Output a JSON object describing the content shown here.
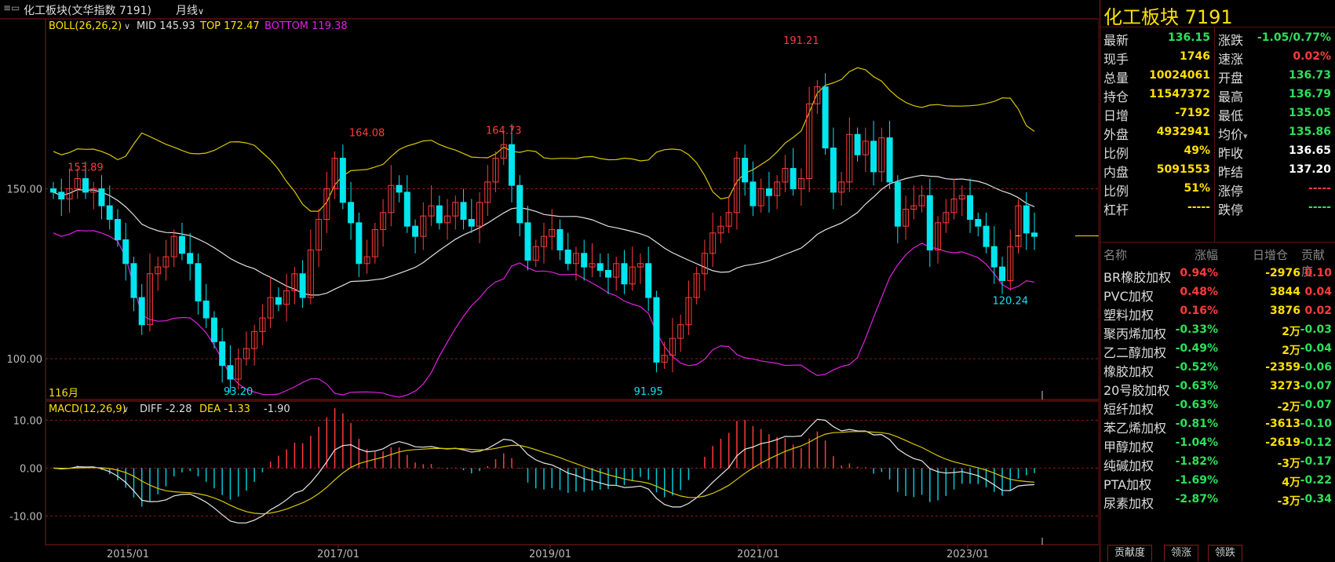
{
  "header": {
    "menu_icon": "menu-icon",
    "title": "化工板块(文华指数 7191)",
    "period": "月线"
  },
  "boll": {
    "label": "BOLL(26,26,2)",
    "mid": "MID 145.93",
    "top": "TOP 172.47",
    "bottom": "BOTTOM 119.38"
  },
  "macd": {
    "label": "MACD(12,26,9)",
    "diff": "DIFF -2.28",
    "dea": "DEA -1.33",
    "macd_value": "-1.90"
  },
  "price_axis": [
    "150.00",
    "100.00"
  ],
  "macd_axis": [
    "10.00",
    "0.00",
    "-10.00"
  ],
  "time_axis": [
    "2015/01",
    "2017/01",
    "2019/01",
    "2021/01",
    "2023/01"
  ],
  "annotations": {
    "hi1": "153.89",
    "hi2": "164.08",
    "hi3": "164.73",
    "hi4": "191.21",
    "lo1": "93.20",
    "lo2": "91.95",
    "lo3": "120.24",
    "month_marker": "116月"
  },
  "colors": {
    "up": "#ff3b3b",
    "down": "#2ee05a",
    "candle_down": "#00e5ee",
    "boll_top": "#d9c800",
    "boll_mid": "#e0e0e0",
    "boll_bottom": "#e020e0",
    "accent": "#ffe000"
  },
  "quote": {
    "title": "化工板块  7191",
    "left": [
      {
        "label": "最新",
        "value": "136.15",
        "color": "dn"
      },
      {
        "label": "现手",
        "value": "1746",
        "color": "y"
      },
      {
        "label": "总量",
        "value": "10024061",
        "color": "y"
      },
      {
        "label": "持仓",
        "value": "11547372",
        "color": "y"
      },
      {
        "label": "日增",
        "value": "-7192",
        "color": "y"
      },
      {
        "label": "外盘",
        "value": "4932941",
        "color": "y"
      },
      {
        "label": "比例",
        "value": "49%",
        "color": "y"
      },
      {
        "label": "内盘",
        "value": "5091553",
        "color": "y"
      },
      {
        "label": "比例",
        "value": "51%",
        "color": "y"
      },
      {
        "label": "杠杆",
        "value": "-----",
        "color": "y"
      }
    ],
    "right": [
      {
        "label": "涨跌",
        "value": "-1.05/0.77%",
        "color": "dn"
      },
      {
        "label": "速涨",
        "value": "0.02%",
        "color": "up"
      },
      {
        "label": "开盘",
        "value": "136.73",
        "color": "dn"
      },
      {
        "label": "最高",
        "value": "136.79",
        "color": "dn"
      },
      {
        "label": "最低",
        "value": "135.05",
        "color": "dn"
      },
      {
        "label": "均价",
        "value": "135.86",
        "color": "dn"
      },
      {
        "label": "昨收",
        "value": "136.65",
        "color": "w"
      },
      {
        "label": "昨结",
        "value": "137.20",
        "color": "w"
      },
      {
        "label": "涨停",
        "value": "-----",
        "color": "up"
      },
      {
        "label": "跌停",
        "value": "-----",
        "color": "dn"
      }
    ]
  },
  "contrib": {
    "headers": [
      "名称",
      "涨幅",
      "日增仓",
      "贡献度"
    ],
    "rows": [
      {
        "name": "BR橡胶加权",
        "pct": "0.94%",
        "pct_color": "up",
        "inc": "-2976",
        "con": "0.10",
        "con_color": "up"
      },
      {
        "name": "PVC加权",
        "pct": "0.48%",
        "pct_color": "up",
        "inc": "3844",
        "con": "0.04",
        "con_color": "up"
      },
      {
        "name": "塑料加权",
        "pct": "0.16%",
        "pct_color": "up",
        "inc": "3876",
        "con": "0.02",
        "con_color": "up"
      },
      {
        "name": "聚丙烯加权",
        "pct": "-0.33%",
        "pct_color": "dn",
        "inc": "2万",
        "con": "-0.03",
        "con_color": "dn"
      },
      {
        "name": "乙二醇加权",
        "pct": "-0.49%",
        "pct_color": "dn",
        "inc": "2万",
        "con": "-0.04",
        "con_color": "dn"
      },
      {
        "name": "橡胶加权",
        "pct": "-0.52%",
        "pct_color": "dn",
        "inc": "-2359",
        "con": "-0.06",
        "con_color": "dn"
      },
      {
        "name": "20号胶加权",
        "pct": "-0.63%",
        "pct_color": "dn",
        "inc": "3273",
        "con": "-0.07",
        "con_color": "dn"
      },
      {
        "name": "短纤加权",
        "pct": "-0.63%",
        "pct_color": "dn",
        "inc": "-2万",
        "con": "-0.07",
        "con_color": "dn"
      },
      {
        "name": "苯乙烯加权",
        "pct": "-0.81%",
        "pct_color": "dn",
        "inc": "-3613",
        "con": "-0.10",
        "con_color": "dn"
      },
      {
        "name": "甲醇加权",
        "pct": "-1.04%",
        "pct_color": "dn",
        "inc": "-2619",
        "con": "-0.12",
        "con_color": "dn"
      },
      {
        "name": "纯碱加权",
        "pct": "-1.82%",
        "pct_color": "dn",
        "inc": "-3万",
        "con": "-0.17",
        "con_color": "dn"
      },
      {
        "name": "PTA加权",
        "pct": "-1.69%",
        "pct_color": "dn",
        "inc": "4万",
        "con": "-0.22",
        "con_color": "dn"
      },
      {
        "name": "尿素加权",
        "pct": "-2.87%",
        "pct_color": "dn",
        "inc": "-3万",
        "con": "-0.34",
        "con_color": "dn"
      }
    ]
  },
  "tabs": [
    "贡献度",
    "领涨",
    "领跌"
  ],
  "chart_data": [
    {
      "type": "candlestick",
      "title": "化工板块(文华指数 7191) 月线",
      "start": "2014-01",
      "interval": "month",
      "closes": [
        149,
        147,
        150,
        153,
        149,
        150,
        145,
        141,
        135,
        128,
        118,
        110,
        125,
        127,
        130,
        136,
        131,
        128,
        117,
        112,
        105,
        98,
        94,
        100,
        103,
        108,
        112,
        118,
        116,
        120,
        125,
        118,
        132,
        141,
        150,
        159,
        146,
        140,
        128,
        130,
        138,
        143,
        151,
        149,
        139,
        136,
        142,
        145,
        140,
        142,
        146,
        141,
        139,
        146,
        152,
        159,
        163,
        151,
        140,
        129,
        133,
        136,
        138,
        132,
        128,
        131,
        127,
        128,
        126,
        124,
        128,
        122,
        127,
        128,
        118,
        99,
        101,
        106,
        110,
        118,
        125,
        131,
        137,
        139,
        143,
        159,
        152,
        145,
        150,
        148,
        152,
        156,
        150,
        153,
        175,
        180,
        162,
        149,
        152,
        166,
        160,
        164,
        155,
        165,
        152,
        139,
        144,
        145,
        148,
        132,
        140,
        143,
        147,
        148,
        141,
        139,
        133,
        127,
        123,
        133,
        145,
        137,
        136
      ],
      "annotations": [
        {
          "label": "153.89",
          "kind": "high",
          "at": "2014-05"
        },
        {
          "label": "164.08",
          "kind": "high",
          "at": "2017-04"
        },
        {
          "label": "164.73",
          "kind": "high",
          "at": "2018-09"
        },
        {
          "label": "191.21",
          "kind": "high",
          "at": "2021-10"
        },
        {
          "label": "93.20",
          "kind": "low",
          "at": "2015-12"
        },
        {
          "label": "91.95",
          "kind": "low",
          "at": "2020-03"
        },
        {
          "label": "120.24",
          "kind": "low",
          "at": "2023-12"
        }
      ],
      "series_lines": [
        {
          "name": "MID",
          "last": 145.93
        },
        {
          "name": "TOP",
          "last": 172.47
        },
        {
          "name": "BOTTOM",
          "last": 119.38
        }
      ],
      "ylim": [
        88,
        200
      ]
    },
    {
      "type": "bar",
      "title": "MACD(12,26,9)",
      "series": [
        {
          "name": "DIFF",
          "last": -2.28
        },
        {
          "name": "DEA",
          "last": -1.33
        },
        {
          "name": "MACD",
          "last": -1.9
        }
      ],
      "ylim": [
        -16,
        14
      ]
    }
  ]
}
